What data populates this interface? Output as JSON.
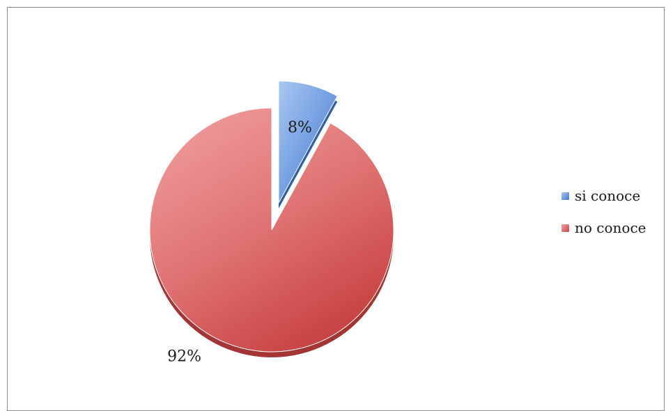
{
  "chart_data": {
    "type": "pie",
    "slices": [
      {
        "name": "si conoce",
        "value": 8,
        "label": "8%",
        "color": "#5b8ed8",
        "exploded": true
      },
      {
        "name": "no conoce",
        "value": 92,
        "label": "92%",
        "color": "#d95a5a",
        "exploded": false
      }
    ],
    "legend": {
      "placement": "right",
      "entries": [
        "si conoce",
        "no conoce"
      ]
    }
  }
}
